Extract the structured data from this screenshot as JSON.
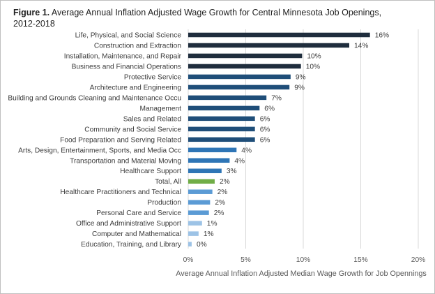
{
  "figure": {
    "label": "Figure 1.",
    "title": "Average Annual Inflation Adjusted Wage Growth for Central Minnesota Job Openings, 2012-2018"
  },
  "chart_data": {
    "type": "bar",
    "orientation": "horizontal",
    "categories": [
      "Life, Physical, and Social Science",
      "Construction and Extraction",
      "Installation, Maintenance, and Repair",
      "Business and Financial Operations",
      "Protective Service",
      "Architecture and Engineering",
      "Building and Grounds Cleaning and Maintenance Occu",
      "Management",
      "Sales and Related",
      "Community and Social Service",
      "Food Preparation and Serving Related",
      "Arts, Design, Entertainment, Sports, and Media Occ",
      "Transportation and Material Moving",
      "Healthcare Support",
      "Total, All",
      "Healthcare Practitioners and Technical",
      "Production",
      "Personal Care and Service",
      "Office and Administrative Support",
      "Computer and Mathematical",
      "Education, Training, and Library"
    ],
    "values": [
      15.8,
      14.0,
      9.9,
      9.8,
      8.9,
      8.8,
      6.8,
      6.2,
      5.8,
      5.8,
      5.8,
      4.2,
      3.6,
      2.9,
      2.3,
      2.1,
      1.9,
      1.8,
      1.2,
      0.9,
      0.3
    ],
    "data_labels": [
      "16%",
      "14%",
      "10%",
      "10%",
      "9%",
      "9%",
      "7%",
      "6%",
      "6%",
      "6%",
      "6%",
      "4%",
      "4%",
      "3%",
      "2%",
      "2%",
      "2%",
      "2%",
      "1%",
      "1%",
      "0%"
    ],
    "bar_colors": [
      "#1f2d3d",
      "#1f2d3d",
      "#1f2d3d",
      "#1f2d3d",
      "#1f4e79",
      "#1f4e79",
      "#1f4e79",
      "#1f4e79",
      "#1f4e79",
      "#1f4e79",
      "#1f4e79",
      "#2e75b6",
      "#2e75b6",
      "#2e75b6",
      "#70ad47",
      "#5b9bd5",
      "#5b9bd5",
      "#5b9bd5",
      "#9dc3e6",
      "#9dc3e6",
      "#9dc3e6"
    ],
    "xlim": [
      0,
      20
    ],
    "x_ticks": [
      0,
      5,
      10,
      15,
      20
    ],
    "x_tick_labels": [
      "0%",
      "5%",
      "10%",
      "15%",
      "20%"
    ],
    "xlabel": "Average Annual Inflation Adjusted Median Wage Growth for Job Opennings",
    "ylabel": "",
    "grid": "vertical",
    "grid_color": "#d9d9d9"
  }
}
